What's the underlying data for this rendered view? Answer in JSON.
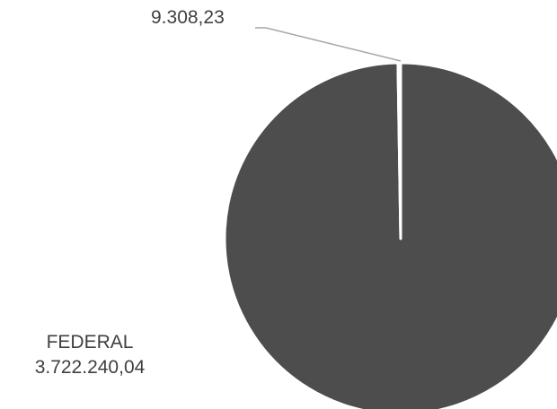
{
  "chart_data": {
    "type": "pie",
    "slices": [
      {
        "label": "FEDERAL",
        "value_text": "3.722.240,04",
        "value": 3722240.04,
        "color": "#4d4d4d"
      },
      {
        "label": "",
        "value_text": "9.308,23",
        "value": 9308.23,
        "color": "#4d4d4d"
      }
    ],
    "slice_border_color": "#ffffff",
    "leader_line_color": "#a6a6a6",
    "label_color": "#404040"
  }
}
